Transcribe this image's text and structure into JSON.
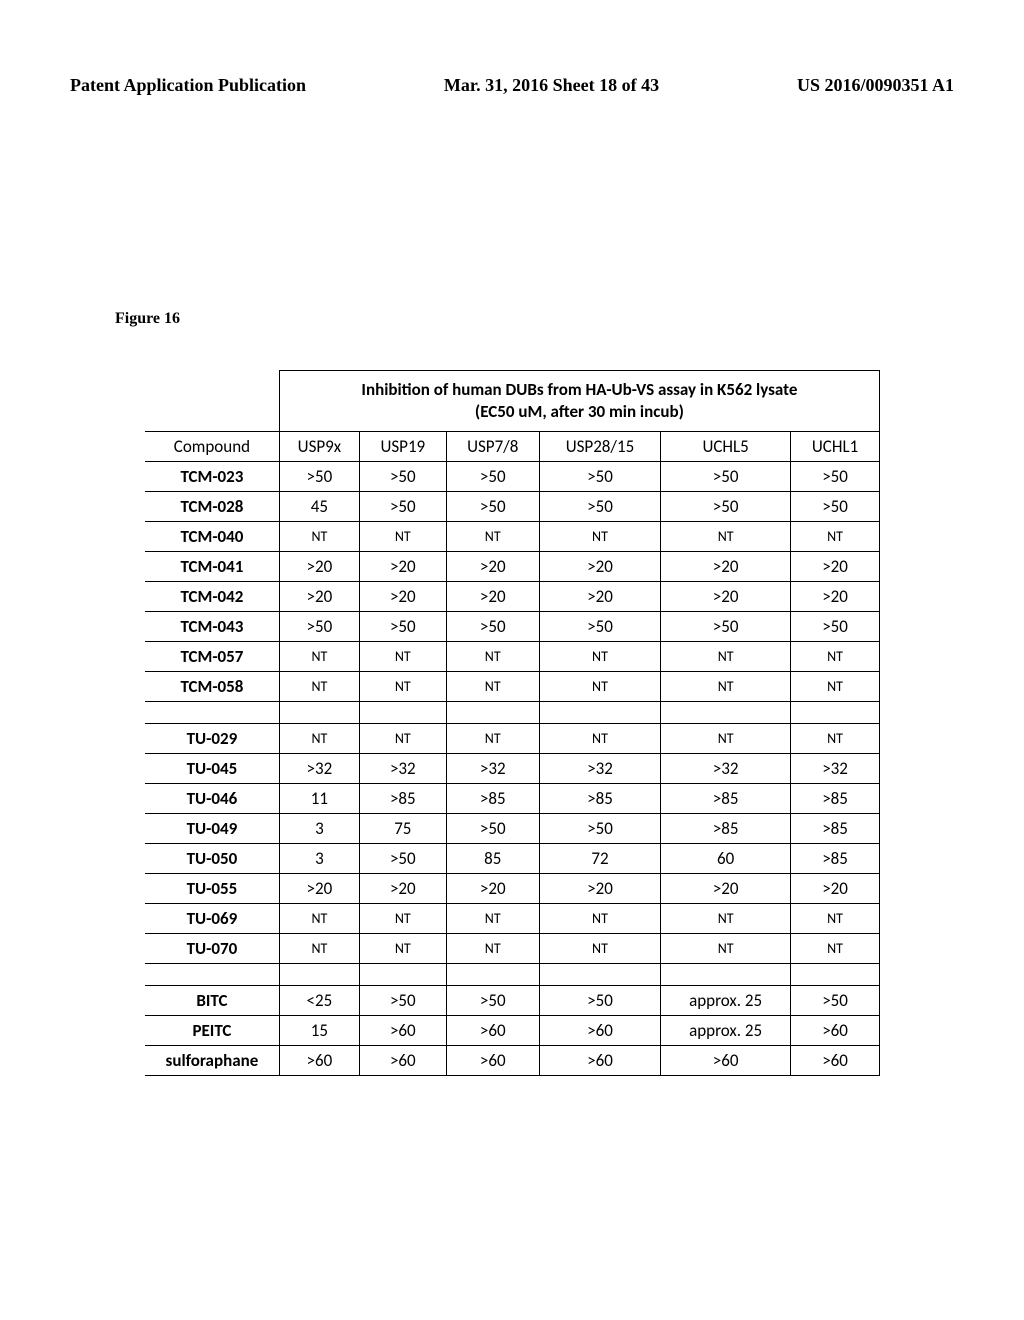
{
  "header": {
    "left": "Patent Application Publication",
    "center": "Mar. 31, 2016  Sheet 18 of 43",
    "right": "US 2016/0090351 A1"
  },
  "figure_label": "Figure 16",
  "table": {
    "title_line1": "Inhibition of human DUBs from HA-Ub-VS assay in K562 lysate",
    "title_line2": "(EC50 uM, after 30 min incub)",
    "compound_header": "Compound",
    "columns": [
      "USP9x",
      "USP19",
      "USP7/8",
      "USP28/15",
      "UCHL5",
      "UCHL1"
    ],
    "rows": [
      {
        "name": "TCM-023",
        "bold": true,
        "values": [
          ">50",
          ">50",
          ">50",
          ">50",
          ">50",
          ">50"
        ],
        "nt": false
      },
      {
        "name": "TCM-028",
        "bold": true,
        "values": [
          "45",
          ">50",
          ">50",
          ">50",
          ">50",
          ">50"
        ],
        "nt": false
      },
      {
        "name": "TCM-040",
        "bold": true,
        "values": [
          "NT",
          "NT",
          "NT",
          "NT",
          "NT",
          "NT"
        ],
        "nt": true
      },
      {
        "name": "TCM-041",
        "bold": true,
        "values": [
          ">20",
          ">20",
          ">20",
          ">20",
          ">20",
          ">20"
        ],
        "nt": false
      },
      {
        "name": "TCM-042",
        "bold": true,
        "values": [
          ">20",
          ">20",
          ">20",
          ">20",
          ">20",
          ">20"
        ],
        "nt": false
      },
      {
        "name": "TCM-043",
        "bold": true,
        "values": [
          ">50",
          ">50",
          ">50",
          ">50",
          ">50",
          ">50"
        ],
        "nt": false
      },
      {
        "name": "TCM-057",
        "bold": true,
        "values": [
          "NT",
          "NT",
          "NT",
          "NT",
          "NT",
          "NT"
        ],
        "nt": true
      },
      {
        "name": "TCM-058",
        "bold": true,
        "values": [
          "NT",
          "NT",
          "NT",
          "NT",
          "NT",
          "NT"
        ],
        "nt": true
      }
    ],
    "rows2": [
      {
        "name": "TU-029",
        "bold": true,
        "values": [
          "NT",
          "NT",
          "NT",
          "NT",
          "NT",
          "NT"
        ],
        "nt": true
      },
      {
        "name": "TU-045",
        "bold": true,
        "values": [
          ">32",
          ">32",
          ">32",
          ">32",
          ">32",
          ">32"
        ],
        "nt": false
      },
      {
        "name": "TU-046",
        "bold": true,
        "values": [
          "11",
          ">85",
          ">85",
          ">85",
          ">85",
          ">85"
        ],
        "nt": false
      },
      {
        "name": "TU-049",
        "bold": true,
        "values": [
          "3",
          "75",
          ">50",
          ">50",
          ">85",
          ">85"
        ],
        "nt": false
      },
      {
        "name": "TU-050",
        "bold": true,
        "values": [
          "3",
          ">50",
          "85",
          "72",
          "60",
          ">85"
        ],
        "nt": false
      },
      {
        "name": "TU-055",
        "bold": true,
        "values": [
          ">20",
          ">20",
          ">20",
          ">20",
          ">20",
          ">20"
        ],
        "nt": false
      },
      {
        "name": "TU-069",
        "bold": true,
        "values": [
          "NT",
          "NT",
          "NT",
          "NT",
          "NT",
          "NT"
        ],
        "nt": true
      },
      {
        "name": "TU-070",
        "bold": true,
        "values": [
          "NT",
          "NT",
          "NT",
          "NT",
          "NT",
          "NT"
        ],
        "nt": true
      }
    ],
    "rows3": [
      {
        "name": "BITC",
        "bold": true,
        "values": [
          "<25",
          ">50",
          ">50",
          ">50",
          "approx. 25",
          ">50"
        ],
        "nt": false
      },
      {
        "name": "PEITC",
        "bold": true,
        "values": [
          "15",
          ">60",
          ">60",
          ">60",
          "approx. 25",
          ">60"
        ],
        "nt": false
      },
      {
        "name": "sulforaphane",
        "bold": true,
        "values": [
          ">60",
          ">60",
          ">60",
          ">60",
          ">60",
          ">60"
        ],
        "nt": false
      }
    ]
  }
}
